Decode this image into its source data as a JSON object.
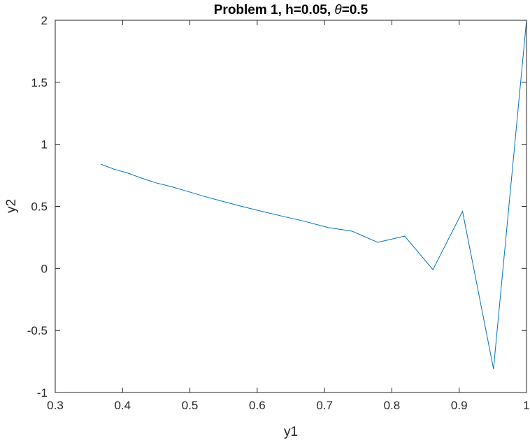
{
  "chart_data": {
    "type": "line",
    "title": {
      "prefix": "Problem 1, h=0.05, ",
      "theta_symbol": "θ",
      "suffix": "=0.5"
    },
    "xlabel": "y1",
    "ylabel": "y2",
    "xlim": [
      0.3,
      1
    ],
    "ylim": [
      -1,
      2
    ],
    "xticks": [
      0.3,
      0.4,
      0.5,
      0.6,
      0.7,
      0.8,
      0.9,
      1
    ],
    "xtick_labels": [
      "0.3",
      "0.4",
      "0.5",
      "0.6",
      "0.7",
      "0.8",
      "0.9",
      "1"
    ],
    "yticks": [
      -1,
      -0.5,
      0,
      0.5,
      1,
      1.5,
      2
    ],
    "ytick_labels": [
      "-1",
      "-0.5",
      "0",
      "0.5",
      "1",
      "1.5",
      "2"
    ],
    "grid": false,
    "series": [
      {
        "color": "#0072BD",
        "x": [
          1.0,
          0.951,
          0.905,
          0.861,
          0.819,
          0.779,
          0.741,
          0.705,
          0.67,
          0.638,
          0.607,
          0.577,
          0.549,
          0.522,
          0.497,
          0.472,
          0.449,
          0.427,
          0.407,
          0.387,
          0.368
        ],
        "y": [
          2.0,
          -0.81,
          0.46,
          -0.01,
          0.26,
          0.21,
          0.3,
          0.33,
          0.38,
          0.42,
          0.46,
          0.5,
          0.54,
          0.58,
          0.62,
          0.66,
          0.69,
          0.73,
          0.77,
          0.8,
          0.84
        ]
      }
    ]
  }
}
